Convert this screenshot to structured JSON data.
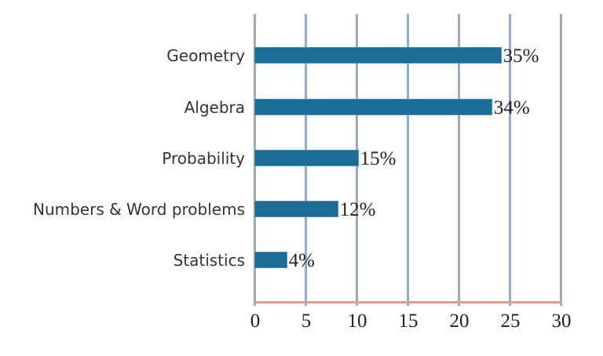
{
  "chart_data": {
    "type": "bar",
    "orientation": "horizontal",
    "title": "",
    "xlabel": "",
    "ylabel": "",
    "categories": [
      "Geometry",
      "Algebra",
      "Probability",
      "Numbers & Word problems",
      "Statistics"
    ],
    "values": [
      24.2,
      23.3,
      10.2,
      8.2,
      3.2
    ],
    "data_labels": [
      "35%",
      "34%",
      "15%",
      "12%",
      "4%"
    ],
    "xlim": [
      0,
      30
    ],
    "x_ticks": [
      "0",
      "5",
      "10",
      "15",
      "20",
      "25",
      "30"
    ],
    "grid": "vertical",
    "legend": null,
    "colors": {
      "bar": "#1b6d95",
      "grid": "#94acc6",
      "baseline": "#eb9a82"
    }
  }
}
